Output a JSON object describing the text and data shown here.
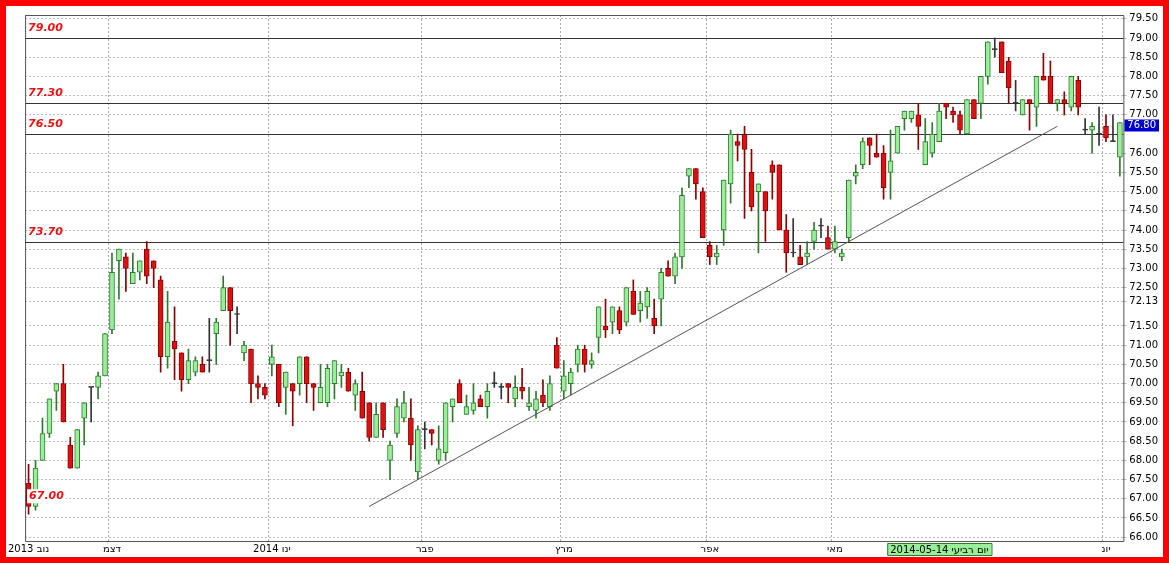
{
  "chart_data": {
    "type": "candlestick",
    "categories": [
      "נוב 2013",
      null,
      null,
      null,
      null,
      null,
      null,
      null,
      null,
      null,
      null,
      null,
      "דצמ",
      null,
      null,
      null,
      null,
      null,
      null,
      null,
      null,
      null,
      null,
      null,
      null,
      null,
      null,
      null,
      null,
      null,
      null,
      null,
      null,
      null,
      null,
      "ינו 2014",
      null,
      null,
      null,
      null,
      null,
      null,
      null,
      null,
      null,
      null,
      null,
      null,
      null,
      null,
      null,
      null,
      null,
      null,
      null,
      null,
      null,
      "פבר",
      null,
      null,
      null,
      null,
      null,
      null,
      null,
      null,
      null,
      null,
      null,
      null,
      null,
      null,
      null,
      null,
      null,
      null,
      null,
      "מרץ",
      null,
      null,
      null,
      null,
      null,
      null,
      null,
      null,
      null,
      null,
      null,
      null,
      null,
      null,
      null,
      null,
      null,
      null,
      null,
      null,
      "אפר",
      null,
      null,
      null,
      null,
      null,
      null,
      null,
      null,
      null,
      null,
      null,
      null,
      null,
      null,
      null,
      null,
      null,
      "מאי",
      null,
      null,
      null,
      null,
      null,
      null,
      null,
      null,
      null,
      null,
      null,
      null,
      null,
      null,
      null,
      null,
      null,
      null,
      null,
      null,
      null,
      null,
      null,
      null,
      null,
      null,
      null,
      null,
      null,
      null,
      null,
      null,
      null,
      null,
      null,
      null,
      null,
      null,
      "יונ",
      null,
      null
    ],
    "ohlc": [
      [
        67.4,
        67.9,
        66.6,
        66.8
      ],
      [
        66.8,
        68.0,
        66.7,
        67.8
      ],
      [
        68.0,
        69.1,
        68.0,
        68.7
      ],
      [
        68.7,
        69.6,
        68.6,
        69.6
      ],
      [
        69.8,
        70.0,
        69.3,
        70.0
      ],
      [
        70.0,
        70.5,
        69.0,
        69.0
      ],
      [
        68.4,
        68.6,
        67.8,
        67.8
      ],
      [
        67.8,
        68.8,
        67.8,
        68.8
      ],
      [
        69.1,
        69.5,
        68.4,
        69.5
      ],
      [
        69.9,
        69.9,
        69.0,
        69.9
      ],
      [
        69.9,
        70.3,
        69.6,
        70.2
      ],
      [
        70.2,
        71.3,
        70.2,
        71.3
      ],
      [
        71.4,
        73.4,
        71.3,
        72.9
      ],
      [
        73.2,
        73.5,
        72.2,
        73.5
      ],
      [
        73.3,
        73.4,
        72.4,
        73.0
      ],
      [
        72.6,
        73.4,
        72.6,
        72.9
      ],
      [
        72.9,
        73.2,
        72.7,
        73.2
      ],
      [
        73.5,
        73.7,
        72.6,
        72.8
      ],
      [
        73.2,
        73.2,
        72.5,
        73.0
      ],
      [
        72.7,
        72.8,
        70.3,
        70.7
      ],
      [
        70.7,
        72.4,
        70.4,
        71.6
      ],
      [
        71.1,
        72.0,
        70.1,
        70.9
      ],
      [
        70.8,
        70.8,
        69.8,
        70.1
      ],
      [
        70.1,
        70.9,
        70.0,
        70.6
      ],
      [
        70.3,
        70.7,
        70.2,
        70.6
      ],
      [
        70.5,
        70.7,
        70.3,
        70.3
      ],
      [
        70.6,
        71.7,
        70.3,
        70.6
      ],
      [
        71.3,
        71.7,
        70.5,
        71.6
      ],
      [
        71.9,
        72.8,
        71.9,
        72.5
      ],
      [
        72.5,
        72.5,
        71.0,
        71.9
      ],
      [
        71.8,
        72.0,
        71.3,
        71.8
      ],
      [
        70.8,
        71.1,
        70.6,
        71.0
      ],
      [
        70.9,
        70.9,
        69.5,
        70.0
      ],
      [
        70.0,
        70.2,
        69.6,
        69.9
      ],
      [
        69.9,
        70.0,
        69.6,
        69.7
      ],
      [
        70.5,
        71.0,
        70.2,
        70.7
      ],
      [
        70.5,
        70.5,
        69.4,
        69.5
      ],
      [
        69.9,
        70.3,
        69.2,
        70.3
      ],
      [
        70.0,
        70.0,
        68.9,
        69.8
      ],
      [
        70.0,
        70.7,
        69.7,
        70.7
      ],
      [
        70.7,
        70.7,
        69.5,
        70.0
      ],
      [
        70.0,
        70.0,
        69.3,
        69.9
      ],
      [
        69.5,
        70.5,
        69.5,
        69.9
      ],
      [
        69.5,
        70.5,
        69.4,
        70.4
      ],
      [
        70.0,
        70.6,
        69.6,
        70.6
      ],
      [
        70.2,
        70.5,
        69.9,
        70.3
      ],
      [
        70.3,
        70.4,
        69.8,
        69.8
      ],
      [
        69.7,
        70.1,
        69.3,
        70.0
      ],
      [
        69.8,
        70.3,
        69.1,
        69.1
      ],
      [
        69.5,
        69.5,
        68.5,
        68.6
      ],
      [
        68.6,
        69.5,
        68.6,
        69.2
      ],
      [
        69.5,
        69.5,
        68.6,
        68.8
      ],
      [
        68.0,
        68.5,
        67.5,
        68.4
      ],
      [
        68.7,
        69.6,
        68.6,
        69.4
      ],
      [
        69.1,
        69.8,
        69.0,
        69.5
      ],
      [
        69.1,
        69.6,
        68.0,
        68.4
      ],
      [
        67.7,
        68.9,
        67.5,
        68.8
      ],
      [
        68.8,
        69.0,
        68.3,
        68.8
      ],
      [
        68.8,
        68.8,
        68.4,
        68.7
      ],
      [
        68.0,
        68.9,
        67.9,
        68.3
      ],
      [
        68.2,
        69.5,
        68.0,
        69.5
      ],
      [
        69.4,
        69.6,
        69.0,
        69.6
      ],
      [
        70.0,
        70.1,
        69.5,
        69.5
      ],
      [
        69.2,
        69.7,
        69.2,
        69.4
      ],
      [
        69.3,
        70.0,
        69.2,
        69.5
      ],
      [
        69.6,
        69.7,
        69.4,
        69.4
      ],
      [
        69.4,
        70.0,
        69.1,
        69.8
      ],
      [
        70.0,
        70.3,
        69.9,
        70.0
      ],
      [
        69.9,
        70.0,
        69.6,
        69.9
      ],
      [
        70.0,
        70.0,
        69.5,
        69.9
      ],
      [
        69.6,
        70.2,
        69.4,
        69.9
      ],
      [
        69.9,
        70.4,
        69.6,
        69.8
      ],
      [
        69.4,
        69.9,
        69.3,
        69.5
      ],
      [
        69.3,
        69.8,
        69.1,
        69.6
      ],
      [
        69.7,
        70.1,
        69.4,
        69.5
      ],
      [
        69.4,
        70.2,
        69.3,
        70.0
      ],
      [
        71.0,
        71.2,
        70.4,
        70.4
      ],
      [
        69.8,
        70.6,
        69.6,
        70.2
      ],
      [
        70.0,
        70.4,
        69.7,
        70.3
      ],
      [
        70.5,
        71.0,
        70.3,
        70.9
      ],
      [
        70.9,
        71.0,
        70.3,
        70.5
      ],
      [
        70.5,
        70.8,
        70.4,
        70.6
      ],
      [
        71.2,
        72.0,
        70.8,
        72.0
      ],
      [
        71.5,
        72.2,
        71.2,
        71.4
      ],
      [
        71.6,
        72.0,
        71.3,
        72.0
      ],
      [
        71.9,
        72.0,
        71.3,
        71.4
      ],
      [
        71.6,
        72.5,
        71.5,
        72.5
      ],
      [
        72.4,
        72.7,
        71.8,
        71.8
      ],
      [
        71.9,
        72.4,
        71.6,
        72.1
      ],
      [
        72.0,
        72.5,
        71.7,
        72.4
      ],
      [
        71.7,
        72.2,
        71.3,
        71.5
      ],
      [
        72.2,
        73.0,
        71.5,
        72.9
      ],
      [
        73.0,
        73.2,
        72.8,
        72.8
      ],
      [
        72.8,
        73.4,
        72.6,
        73.3
      ],
      [
        73.3,
        75.1,
        73.0,
        74.9
      ],
      [
        75.4,
        75.6,
        75.1,
        75.6
      ],
      [
        75.6,
        75.6,
        74.8,
        75.2
      ],
      [
        75.0,
        75.1,
        73.8,
        73.8
      ],
      [
        73.6,
        73.7,
        73.1,
        73.3
      ],
      [
        73.3,
        73.6,
        73.1,
        73.4
      ],
      [
        74.0,
        75.3,
        73.6,
        75.3
      ],
      [
        75.2,
        76.6,
        74.7,
        76.5
      ],
      [
        76.3,
        76.5,
        75.8,
        76.2
      ],
      [
        76.5,
        76.7,
        74.3,
        76.1
      ],
      [
        75.5,
        76.1,
        74.5,
        74.6
      ],
      [
        75.0,
        75.2,
        73.4,
        75.2
      ],
      [
        75.0,
        75.0,
        73.7,
        74.5
      ],
      [
        75.7,
        75.8,
        74.8,
        75.5
      ],
      [
        75.7,
        75.7,
        74.0,
        74.0
      ],
      [
        74.0,
        74.4,
        72.9,
        73.4
      ],
      [
        73.4,
        74.3,
        73.3,
        73.4
      ],
      [
        73.3,
        73.6,
        73.1,
        73.1
      ],
      [
        73.3,
        73.7,
        73.1,
        73.4
      ],
      [
        73.7,
        74.2,
        73.5,
        74.0
      ],
      [
        74.1,
        74.3,
        73.8,
        74.1
      ],
      [
        73.8,
        74.1,
        73.5,
        73.5
      ],
      [
        73.5,
        74.1,
        73.4,
        73.7
      ],
      [
        73.3,
        73.5,
        73.2,
        73.4
      ],
      [
        73.8,
        75.3,
        73.7,
        75.3
      ],
      [
        75.4,
        75.7,
        75.2,
        75.5
      ],
      [
        75.7,
        76.4,
        75.6,
        76.3
      ],
      [
        76.4,
        76.4,
        75.7,
        76.2
      ],
      [
        76.0,
        76.5,
        75.9,
        75.9
      ],
      [
        76.0,
        76.2,
        74.8,
        75.1
      ],
      [
        75.5,
        76.6,
        74.8,
        75.8
      ],
      [
        76.0,
        76.7,
        76.0,
        76.7
      ],
      [
        76.9,
        77.1,
        76.6,
        77.1
      ],
      [
        76.9,
        77.1,
        76.8,
        77.1
      ],
      [
        77.0,
        77.3,
        76.1,
        76.7
      ],
      [
        75.7,
        76.9,
        75.7,
        76.3
      ],
      [
        76.0,
        76.8,
        75.9,
        76.5
      ],
      [
        76.3,
        77.3,
        76.3,
        77.1
      ],
      [
        77.3,
        77.3,
        76.9,
        77.2
      ],
      [
        77.1,
        77.2,
        76.8,
        77.0
      ],
      [
        77.0,
        77.1,
        76.5,
        76.6
      ],
      [
        76.5,
        77.4,
        76.5,
        77.4
      ],
      [
        77.4,
        77.4,
        76.9,
        76.9
      ],
      [
        77.3,
        78.0,
        76.9,
        78.0
      ],
      [
        78.0,
        78.9,
        77.8,
        78.9
      ],
      [
        78.7,
        79.0,
        78.5,
        78.7
      ],
      [
        78.9,
        78.9,
        78.1,
        78.1
      ],
      [
        78.4,
        78.5,
        77.3,
        77.7
      ],
      [
        77.3,
        77.9,
        77.1,
        77.3
      ],
      [
        77.0,
        77.4,
        77.0,
        77.4
      ],
      [
        77.4,
        77.4,
        76.6,
        77.3
      ],
      [
        77.2,
        78.0,
        76.7,
        78.0
      ],
      [
        78.0,
        78.6,
        77.9,
        77.9
      ],
      [
        78.0,
        78.4,
        77.3,
        77.3
      ],
      [
        77.3,
        77.4,
        77.1,
        77.4
      ],
      [
        77.4,
        77.6,
        77.0,
        77.3
      ],
      [
        77.2,
        78.0,
        77.1,
        78.0
      ],
      [
        77.9,
        78.0,
        77.0,
        77.2
      ],
      [
        76.6,
        76.9,
        76.5,
        76.6
      ],
      [
        76.6,
        76.8,
        76.0,
        76.7
      ],
      [
        76.5,
        77.2,
        76.2,
        76.5
      ],
      [
        76.7,
        77.0,
        76.3,
        76.4
      ],
      [
        76.3,
        77.0,
        76.3,
        76.3
      ],
      [
        75.9,
        76.8,
        75.4,
        76.8
      ]
    ],
    "series": [
      {
        "type": "line",
        "color": "#555555",
        "values": [
          null,
          null,
          null,
          null,
          null,
          null,
          null,
          null,
          null,
          null,
          null,
          null,
          null,
          null,
          null,
          null,
          null,
          null,
          null,
          null,
          null,
          null,
          null,
          null,
          null,
          null,
          null,
          null,
          null,
          null,
          null,
          null,
          null,
          null,
          null,
          null,
          null,
          null,
          null,
          null,
          null,
          null,
          null,
          null,
          null,
          null,
          null,
          null,
          null,
          66.8,
          null,
          null,
          null,
          null,
          null,
          null,
          null,
          null,
          null,
          null,
          null,
          null,
          null,
          null,
          null,
          null,
          null,
          null,
          null,
          null,
          null,
          null,
          null,
          null,
          null,
          null,
          null,
          null,
          null,
          null,
          null,
          null,
          null,
          null,
          null,
          null,
          null,
          null,
          null,
          null,
          null,
          null,
          null,
          null,
          null,
          null,
          null,
          null,
          null,
          null,
          null,
          null,
          null,
          null,
          null,
          null,
          null,
          null,
          null,
          null,
          null,
          null,
          null,
          null,
          null,
          null,
          null,
          null,
          null,
          null,
          null,
          null,
          null,
          null,
          null,
          null,
          null,
          null,
          null,
          null,
          null,
          null,
          null,
          null,
          null,
          null,
          null,
          null,
          null,
          null,
          null,
          null,
          null,
          null,
          null,
          null,
          null,
          null,
          76.7,
          null,
          null,
          null,
          null,
          null,
          null,
          null,
          null,
          null
        ]
      }
    ],
    "ylim": [
      65.9,
      79.6
    ],
    "yticks": [
      {
        "value": 66,
        "label": "66.00"
      },
      {
        "value": 66.5,
        "label": "66.50"
      },
      {
        "value": 67,
        "label": "67.00"
      },
      {
        "value": 67.5,
        "label": "67.50"
      },
      {
        "value": 68,
        "label": "68.00"
      },
      {
        "value": 68.5,
        "label": "68.50"
      },
      {
        "value": 69,
        "label": "69.00"
      },
      {
        "value": 69.5,
        "label": "69.50"
      },
      {
        "value": 70,
        "label": "70.00"
      },
      {
        "value": 70.5,
        "label": "70.50"
      },
      {
        "value": 71,
        "label": "71.00"
      },
      {
        "value": 71.5,
        "label": "71.50"
      },
      {
        "value": 72.13,
        "label": "72.13"
      },
      {
        "value": 72.5,
        "label": "72.50"
      },
      {
        "value": 73,
        "label": "73.00"
      },
      {
        "value": 73.5,
        "label": "73.50"
      },
      {
        "value": 74,
        "label": "74.00"
      },
      {
        "value": 74.5,
        "label": "74.50"
      },
      {
        "value": 75,
        "label": "75.00"
      },
      {
        "value": 75.5,
        "label": "75.50"
      },
      {
        "value": 76,
        "label": "76.00"
      },
      {
        "value": 76.5,
        "label": null
      },
      {
        "value": 77,
        "label": "77.00"
      },
      {
        "value": 77.5,
        "label": "77.50"
      },
      {
        "value": 78,
        "label": "78.00"
      },
      {
        "value": 78.5,
        "label": "78.50"
      },
      {
        "value": 79,
        "label": "79.00"
      },
      {
        "value": 79.5,
        "label": "79.50"
      }
    ],
    "ref_lines": [
      {
        "axis": "y",
        "value": 79.0,
        "label": "79.00",
        "color": "#333333"
      },
      {
        "axis": "y",
        "value": 77.3,
        "label": "77.30",
        "color": "#333333"
      },
      {
        "axis": "y",
        "value": 76.5,
        "label": "76.50",
        "color": "#333333"
      },
      {
        "axis": "y",
        "value": 73.7,
        "label": "73.70",
        "color": "#333333"
      }
    ],
    "annotations": [
      "2014-05-14 יום רביעי",
      "67.00",
      "76.80"
    ],
    "grid": true,
    "legend": false
  }
}
